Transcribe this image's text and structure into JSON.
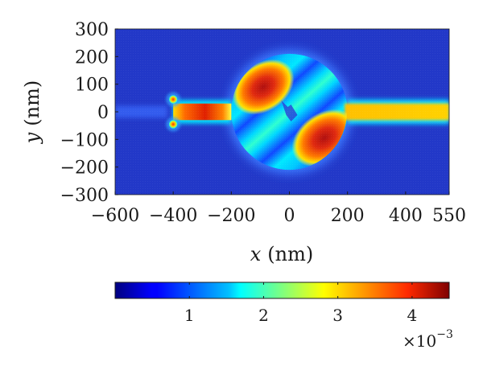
{
  "chart_data": {
    "type": "heatmap",
    "xlabel_var": "x",
    "xlabel_unit": "(nm)",
    "ylabel_var": "y",
    "ylabel_unit": "(nm)",
    "xlim": [
      -600,
      550
    ],
    "ylim": [
      -300,
      300
    ],
    "x_ticks": [
      -600,
      -400,
      -200,
      0,
      200,
      400,
      550
    ],
    "x_tick_labels": [
      "−600",
      "−400",
      "−200",
      "0",
      "200",
      "400",
      "550"
    ],
    "y_ticks": [
      300,
      200,
      100,
      0,
      -100,
      -200,
      -300
    ],
    "y_tick_labels": [
      "300",
      "200",
      "100",
      "0",
      "−100",
      "−200",
      "−300"
    ],
    "colorbar": {
      "colormap": "jet",
      "range": [
        0,
        0.0045
      ],
      "ticks": [
        0.001,
        0.002,
        0.003,
        0.004
      ],
      "tick_labels": [
        "1",
        "2",
        "3",
        "4"
      ],
      "multiplier_base": "×10",
      "multiplier_exp": "−3"
    },
    "field_regions": [
      {
        "name": "left-feed-waveguide",
        "x": [
          -400,
          -200
        ],
        "y": [
          -30,
          30
        ],
        "value": 0.0036
      },
      {
        "name": "right-output-waveguide",
        "x": [
          200,
          550
        ],
        "y": [
          -30,
          30
        ],
        "value": 0.0031
      },
      {
        "name": "disk-resonator",
        "center": [
          0,
          0
        ],
        "radius": 200
      },
      {
        "name": "hotspot-upper-left",
        "center": [
          -90,
          90
        ],
        "value": 0.0043
      },
      {
        "name": "hotspot-lower-right",
        "center": [
          120,
          -95
        ],
        "value": 0.0043
      },
      {
        "name": "source-dots",
        "points": [
          [
            -400,
            45
          ],
          [
            -400,
            -45
          ]
        ],
        "value": 0.0038
      }
    ]
  }
}
